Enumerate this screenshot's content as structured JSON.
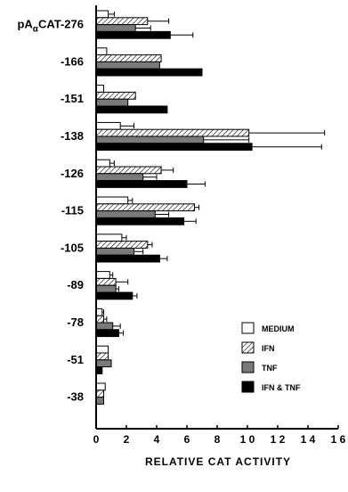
{
  "chart_data": {
    "type": "bar",
    "orientation": "horizontal",
    "xlabel": "RELATIVE CAT ACTIVITY",
    "xlim": [
      0,
      16
    ],
    "xticks": [
      0,
      2,
      4,
      6,
      8,
      10,
      12,
      14,
      16
    ],
    "xtick_labels": [
      "0",
      "2",
      "4",
      "6",
      "8",
      "1 0",
      "1 2",
      "1 4",
      "1 6"
    ],
    "categories": [
      "pAαCAT-276",
      "-166",
      "-151",
      "-138",
      "-126",
      "-115",
      "-105",
      "-89",
      "-78",
      "-51",
      "-38"
    ],
    "category_label_parts": {
      "prefix": "pA",
      "subscript": "α",
      "suffix": "CAT-276"
    },
    "legend_position": "lower-right",
    "series": [
      {
        "name": "MEDIUM",
        "pattern": "white",
        "values": [
          0.8,
          0.7,
          0.5,
          1.6,
          0.9,
          2.1,
          1.7,
          0.9,
          0.4,
          0.8,
          0.6
        ],
        "errors": [
          0.4,
          0.0,
          0.0,
          0.9,
          0.3,
          0.3,
          0.3,
          0.2,
          0.1,
          0.0,
          0.0
        ]
      },
      {
        "name": "IFN",
        "pattern": "hatched",
        "values": [
          3.4,
          4.3,
          2.6,
          10.1,
          4.3,
          6.5,
          3.4,
          1.3,
          0.5,
          0.8,
          0.5
        ],
        "errors": [
          1.4,
          0.0,
          0.0,
          5.0,
          0.8,
          0.3,
          0.3,
          0.8,
          0.2,
          0.0,
          0.0
        ]
      },
      {
        "name": "TNF",
        "pattern": "gray",
        "values": [
          2.6,
          4.2,
          2.1,
          7.1,
          3.1,
          3.9,
          2.5,
          1.3,
          1.1,
          1.0,
          0.5
        ],
        "errors": [
          1.0,
          0.0,
          0.0,
          3.0,
          0.9,
          0.9,
          0.6,
          0.2,
          0.5,
          0.0,
          0.0
        ]
      },
      {
        "name": "IFN & TNF",
        "pattern": "black",
        "values": [
          4.9,
          7.0,
          4.7,
          10.3,
          6.0,
          5.8,
          4.2,
          2.4,
          1.5,
          0.4,
          0.0
        ],
        "errors": [
          1.5,
          0.0,
          0.0,
          4.6,
          1.2,
          0.8,
          0.5,
          0.3,
          0.3,
          0.0,
          0.0
        ]
      }
    ]
  },
  "colors": {
    "white": "#ffffff",
    "gray": "#7a7a7a",
    "black": "#000000",
    "stroke": "#000000"
  }
}
